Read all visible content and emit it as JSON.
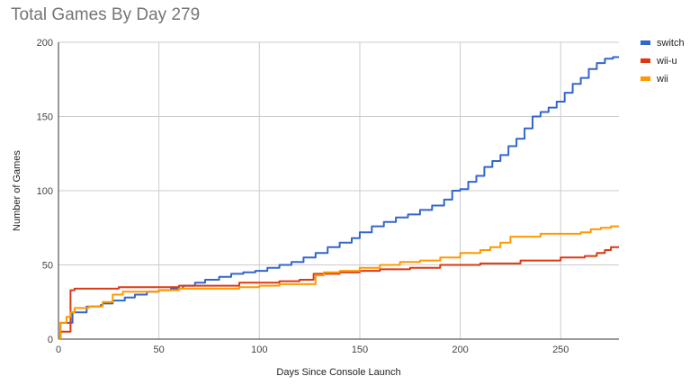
{
  "title": "Total Games By Day 279",
  "chart_data": {
    "type": "line",
    "title": "Total Games By Day 279",
    "xlabel": "Days Since Console Launch",
    "ylabel": "Number of Games",
    "xlim": [
      0,
      279
    ],
    "ylim": [
      0,
      200
    ],
    "xticks": [
      0,
      50,
      100,
      150,
      200,
      250
    ],
    "yticks": [
      0,
      50,
      100,
      150,
      200
    ],
    "grid": true,
    "legend_position": "top-right",
    "series": [
      {
        "name": "switch",
        "color": "#3366cc",
        "points": [
          [
            0,
            0
          ],
          [
            1,
            11
          ],
          [
            6,
            11
          ],
          [
            7,
            18
          ],
          [
            13,
            18
          ],
          [
            14,
            22
          ],
          [
            21,
            23
          ],
          [
            22,
            24
          ],
          [
            27,
            26
          ],
          [
            33,
            28
          ],
          [
            38,
            30
          ],
          [
            44,
            32
          ],
          [
            50,
            33
          ],
          [
            56,
            34
          ],
          [
            62,
            36
          ],
          [
            68,
            38
          ],
          [
            73,
            40
          ],
          [
            80,
            42
          ],
          [
            86,
            44
          ],
          [
            92,
            45
          ],
          [
            98,
            46
          ],
          [
            104,
            48
          ],
          [
            110,
            50
          ],
          [
            116,
            52
          ],
          [
            122,
            55
          ],
          [
            128,
            58
          ],
          [
            134,
            62
          ],
          [
            140,
            65
          ],
          [
            146,
            68
          ],
          [
            150,
            72
          ],
          [
            156,
            76
          ],
          [
            162,
            79
          ],
          [
            168,
            82
          ],
          [
            174,
            84
          ],
          [
            180,
            87
          ],
          [
            186,
            90
          ],
          [
            192,
            94
          ],
          [
            196,
            100
          ],
          [
            200,
            101
          ],
          [
            204,
            106
          ],
          [
            208,
            110
          ],
          [
            212,
            116
          ],
          [
            216,
            120
          ],
          [
            220,
            124
          ],
          [
            224,
            130
          ],
          [
            228,
            135
          ],
          [
            232,
            142
          ],
          [
            236,
            150
          ],
          [
            240,
            153
          ],
          [
            244,
            156
          ],
          [
            248,
            160
          ],
          [
            252,
            166
          ],
          [
            256,
            172
          ],
          [
            260,
            176
          ],
          [
            264,
            182
          ],
          [
            268,
            186
          ],
          [
            272,
            189
          ],
          [
            276,
            190
          ],
          [
            279,
            190
          ]
        ]
      },
      {
        "name": "wii-u",
        "color": "#dc3912",
        "points": [
          [
            0,
            0
          ],
          [
            1,
            5
          ],
          [
            5,
            5
          ],
          [
            6,
            33
          ],
          [
            8,
            34
          ],
          [
            30,
            35
          ],
          [
            60,
            36
          ],
          [
            90,
            38
          ],
          [
            110,
            39
          ],
          [
            120,
            40
          ],
          [
            127,
            44
          ],
          [
            140,
            45
          ],
          [
            150,
            46
          ],
          [
            160,
            47
          ],
          [
            175,
            48
          ],
          [
            190,
            50
          ],
          [
            210,
            51
          ],
          [
            230,
            53
          ],
          [
            250,
            55
          ],
          [
            262,
            56
          ],
          [
            268,
            58
          ],
          [
            272,
            60
          ],
          [
            275,
            62
          ],
          [
            279,
            62
          ]
        ]
      },
      {
        "name": "wii",
        "color": "#ff9900",
        "points": [
          [
            0,
            0
          ],
          [
            1,
            11
          ],
          [
            4,
            15
          ],
          [
            6,
            18
          ],
          [
            8,
            21
          ],
          [
            15,
            22
          ],
          [
            22,
            25
          ],
          [
            27,
            30
          ],
          [
            32,
            32
          ],
          [
            50,
            33
          ],
          [
            60,
            34
          ],
          [
            75,
            34
          ],
          [
            90,
            35
          ],
          [
            100,
            36
          ],
          [
            110,
            37
          ],
          [
            120,
            37
          ],
          [
            128,
            43
          ],
          [
            132,
            45
          ],
          [
            140,
            46
          ],
          [
            150,
            48
          ],
          [
            160,
            50
          ],
          [
            170,
            52
          ],
          [
            180,
            53
          ],
          [
            190,
            55
          ],
          [
            200,
            58
          ],
          [
            210,
            60
          ],
          [
            215,
            62
          ],
          [
            220,
            65
          ],
          [
            225,
            69
          ],
          [
            240,
            71
          ],
          [
            260,
            72
          ],
          [
            265,
            74
          ],
          [
            270,
            75
          ],
          [
            275,
            76
          ],
          [
            279,
            76
          ]
        ]
      }
    ]
  }
}
